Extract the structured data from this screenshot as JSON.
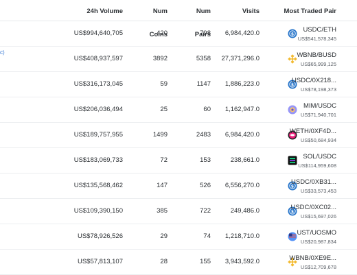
{
  "headers": {
    "volume": "24h Volume",
    "coins": "Num Coins",
    "pairs": "Num Pairs",
    "visits": "Visits",
    "most_traded": "Most Traded Pair"
  },
  "edge_mark": "c)",
  "rows": [
    {
      "volume": "US$994,640,705",
      "coins": "420",
      "pairs": "798",
      "visits": "6,984,420.0",
      "pair": "USDC/ETH",
      "pair_volume": "US$541,578,345",
      "icon": "usdc-icon",
      "icon_color": "#2775ca"
    },
    {
      "volume": "US$408,937,597",
      "coins": "3892",
      "pairs": "5358",
      "visits": "27,371,296.0",
      "pair": "WBNB/BUSD",
      "pair_volume": "US$65,999,125",
      "icon": "bnb-icon",
      "icon_color": "#f3ba2f"
    },
    {
      "volume": "US$316,173,045",
      "coins": "59",
      "pairs": "1147",
      "visits": "1,886,223.0",
      "pair": "USDC/0X218...",
      "pair_volume": "US$78,198,373",
      "icon": "usdc-icon",
      "icon_color": "#2775ca"
    },
    {
      "volume": "US$206,036,494",
      "coins": "25",
      "pairs": "60",
      "visits": "1,162,947.0",
      "pair": "MIM/USDC",
      "pair_volume": "US$71,940,701",
      "icon": "mim-icon",
      "icon_color": "#9695f8"
    },
    {
      "volume": "US$189,757,955",
      "coins": "1499",
      "pairs": "2483",
      "visits": "6,984,420.0",
      "pair": "WETH/0XF4D...",
      "pair_volume": "US$50,684,934",
      "icon": "weth-icon",
      "icon_color": "#ec1c79"
    },
    {
      "volume": "US$183,069,733",
      "coins": "72",
      "pairs": "153",
      "visits": "238,661.0",
      "pair": "SOL/USDC",
      "pair_volume": "US$114,959,608",
      "icon": "sol-icon",
      "icon_color": "#14f195"
    },
    {
      "volume": "US$135,568,462",
      "coins": "147",
      "pairs": "526",
      "visits": "6,556,270.0",
      "pair": "USDC/0XB31...",
      "pair_volume": "US$33,573,453",
      "icon": "usdc-icon",
      "icon_color": "#2775ca"
    },
    {
      "volume": "US$109,390,150",
      "coins": "385",
      "pairs": "722",
      "visits": "249,486.0",
      "pair": "USDC/0XC02...",
      "pair_volume": "US$15,697,026",
      "icon": "usdc-icon",
      "icon_color": "#2775ca"
    },
    {
      "volume": "US$78,926,526",
      "coins": "29",
      "pairs": "74",
      "visits": "1,218,710.0",
      "pair": "UST/UOSMO",
      "pair_volume": "US$20,987,834",
      "icon": "ust-icon",
      "icon_color": "#5493f7"
    },
    {
      "volume": "US$57,813,107",
      "coins": "28",
      "pairs": "155",
      "visits": "3,943,592.0",
      "pair": "WBNB/0XE9E...",
      "pair_volume": "US$12,709,678",
      "icon": "bnb-icon",
      "icon_color": "#f3ba2f"
    }
  ]
}
